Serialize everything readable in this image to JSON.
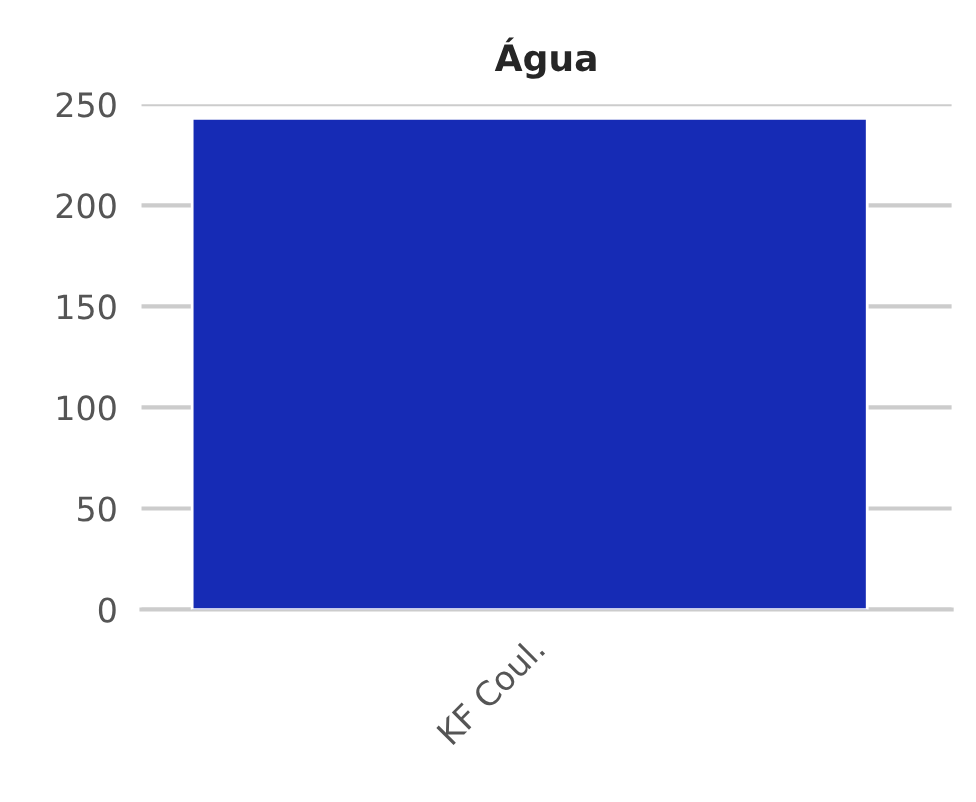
{
  "chart_data": {
    "type": "bar",
    "title": "Água",
    "categories": [
      "KF Coul."
    ],
    "values": [
      243
    ],
    "color": "#162bb5",
    "ylim": [
      0,
      250
    ],
    "yticks": [
      0,
      50,
      100,
      150,
      200,
      250
    ],
    "grid": "y"
  }
}
